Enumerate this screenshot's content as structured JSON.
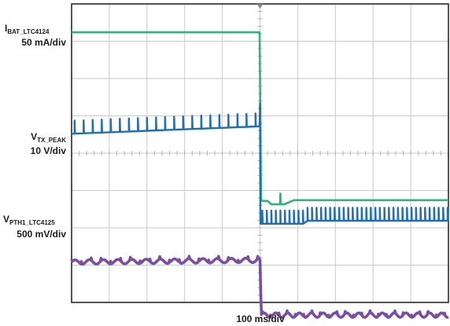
{
  "chart_data": {
    "type": "line",
    "title": "",
    "xlabel": "100 ms/div",
    "ylabel": "",
    "grid": true,
    "x_divisions": 10,
    "y_divisions": 8,
    "x_unit": "ms",
    "x_per_div": 100,
    "xlim": [
      0,
      1000
    ],
    "event_marker_x": 500,
    "series": [
      {
        "key": "ibat",
        "name_main": "I",
        "name_sub": "BAT_LTC4124",
        "scale": "50 mA/div",
        "color": "#2db37e",
        "unit": "div",
        "points": [
          [
            0,
            7.24
          ],
          [
            499,
            7.24
          ],
          [
            503,
            2.73
          ],
          [
            510,
            2.72
          ],
          [
            520,
            2.72
          ],
          [
            530,
            2.63
          ],
          [
            540,
            2.63
          ],
          [
            553,
            2.63
          ],
          [
            554,
            2.92
          ],
          [
            555,
            2.63
          ],
          [
            565,
            2.63
          ],
          [
            590,
            2.74
          ],
          [
            700,
            2.74
          ],
          [
            850,
            2.74
          ],
          [
            1000,
            2.74
          ]
        ]
      },
      {
        "key": "vtx",
        "name_main": "V",
        "name_sub": "TX_PEAK",
        "scale": "10 V/div",
        "color": "#1f6fb2",
        "unit": "div",
        "baseline_before": 4.52,
        "baseline_after": 2.11,
        "spike_height": 0.35,
        "spike_period_before_ms": 24,
        "spike_period_after_ms": 12,
        "points": [
          [
            0,
            4.52
          ],
          [
            499,
            4.73
          ],
          [
            500,
            5.34
          ],
          [
            502,
            2.11
          ],
          [
            1000,
            2.11
          ]
        ]
      },
      {
        "key": "vpth1",
        "name_main": "V",
        "name_sub": "PTH1_LTC4125",
        "scale": "500 mV/div",
        "color": "#7b4ea3",
        "unit": "div",
        "baseline_before": 1.08,
        "baseline_after": -0.34,
        "ripple": 0.06,
        "points": [
          [
            0,
            1.11
          ],
          [
            499,
            1.13
          ],
          [
            502,
            -0.3
          ],
          [
            1000,
            -0.33
          ]
        ]
      }
    ]
  }
}
